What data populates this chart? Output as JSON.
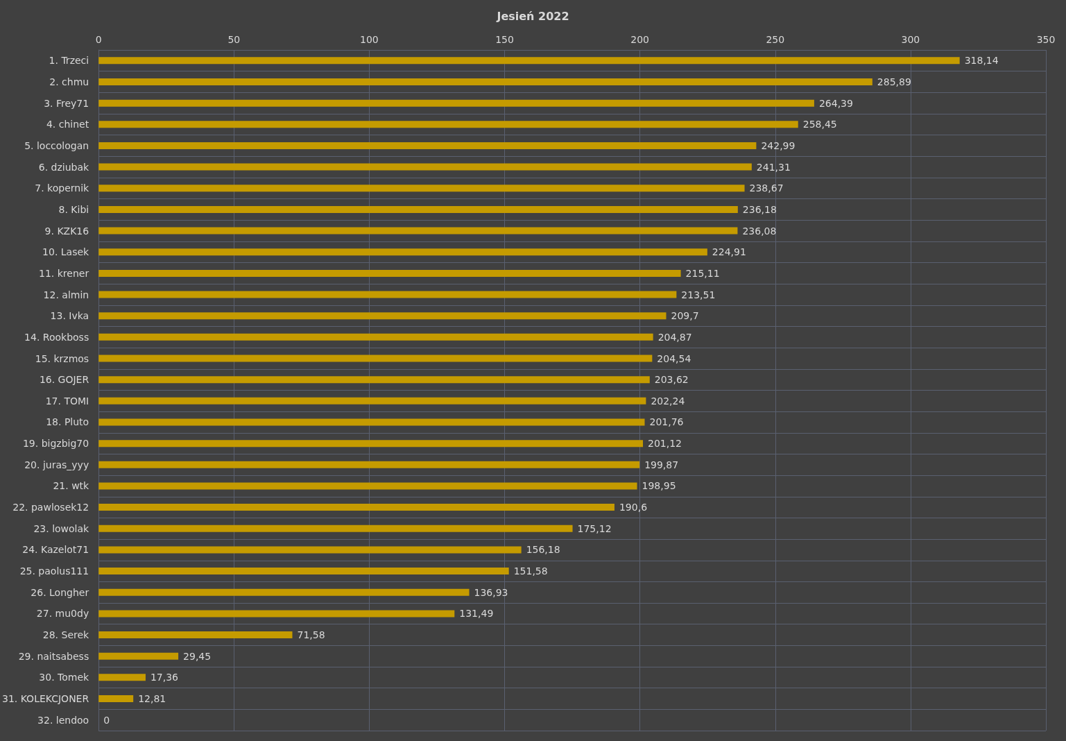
{
  "chart_data": {
    "type": "bar",
    "orientation": "horizontal",
    "title": "Jesień 2022",
    "categories": [
      "1. Trzeci",
      "2. chmu",
      "3. Frey71",
      "4. chinet",
      "5. loccologan",
      "6. dziubak",
      "7. kopernik",
      "8. Kibi",
      "9. KZK16",
      "10. Lasek",
      "11. krener",
      "12. almin",
      "13. Ivka",
      "14. Rookboss",
      "15. krzmos",
      "16. GOJER",
      "17. TOMI",
      "18. Pluto",
      "19. bigzbig70",
      "20. juras_yyy",
      "21. wtk",
      "22. pawlosek12",
      "23. lowolak",
      "24. Kazelot71",
      "25. paolus111",
      "26. Longher",
      "27. mu0dy",
      "28. Serek",
      "29. naitsabess",
      "30. Tomek",
      "31. KOLEKCJONER",
      "32. lendoo"
    ],
    "values": [
      318.14,
      285.89,
      264.39,
      258.45,
      242.99,
      241.31,
      238.67,
      236.18,
      236.08,
      224.91,
      215.11,
      213.51,
      209.7,
      204.87,
      204.54,
      203.62,
      202.24,
      201.76,
      201.12,
      199.87,
      198.95,
      190.6,
      175.12,
      156.18,
      151.58,
      136.93,
      131.49,
      71.58,
      29.45,
      17.36,
      12.81,
      0
    ],
    "value_labels": [
      "318,14",
      "285,89",
      "264,39",
      "258,45",
      "242,99",
      "241,31",
      "238,67",
      "236,18",
      "236,08",
      "224,91",
      "215,11",
      "213,51",
      "209,7",
      "204,87",
      "204,54",
      "203,62",
      "202,24",
      "201,76",
      "201,12",
      "199,87",
      "198,95",
      "190,6",
      "175,12",
      "156,18",
      "151,58",
      "136,93",
      "131,49",
      "71,58",
      "29,45",
      "17,36",
      "12,81",
      "0"
    ],
    "color": "#c59b00",
    "xlim": [
      0,
      350
    ],
    "xticks": [
      0,
      50,
      100,
      150,
      200,
      250,
      300,
      350
    ],
    "grid": true
  }
}
